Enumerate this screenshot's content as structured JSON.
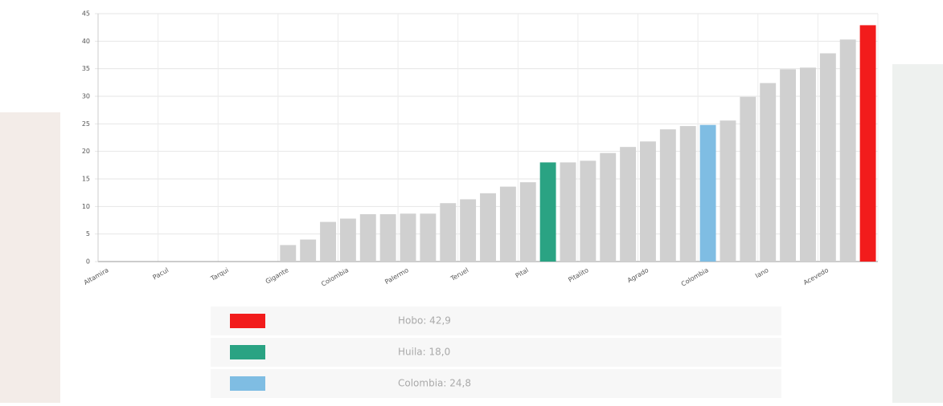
{
  "chart_data": {
    "type": "bar",
    "categories": [
      "Altamira",
      null,
      null,
      "Pacul",
      null,
      null,
      "Tarqui",
      null,
      null,
      "Gigante",
      null,
      null,
      "Colombia",
      null,
      null,
      "Palermo",
      null,
      null,
      "Teruel",
      null,
      null,
      "Pital",
      null,
      null,
      "Pitalito",
      null,
      null,
      "Agrado",
      null,
      null,
      "Colombia",
      null,
      null,
      "Iano",
      null,
      null,
      "Acevedo",
      null,
      null
    ],
    "values": [
      0,
      0,
      0,
      0,
      0,
      0,
      0,
      0,
      0,
      3.0,
      4.0,
      7.2,
      7.8,
      8.6,
      8.6,
      8.7,
      8.7,
      10.6,
      11.3,
      12.4,
      13.6,
      14.4,
      18.0,
      18.0,
      18.3,
      19.7,
      20.8,
      21.8,
      24.0,
      24.6,
      24.8,
      25.6,
      29.9,
      32.4,
      34.9,
      35.2,
      37.8,
      40.3,
      42.9
    ],
    "colors": [
      "#d0d0d0",
      "#d0d0d0",
      "#d0d0d0",
      "#d0d0d0",
      "#d0d0d0",
      "#d0d0d0",
      "#d0d0d0",
      "#d0d0d0",
      "#d0d0d0",
      "#d0d0d0",
      "#d0d0d0",
      "#d0d0d0",
      "#d0d0d0",
      "#d0d0d0",
      "#d0d0d0",
      "#d0d0d0",
      "#d0d0d0",
      "#d0d0d0",
      "#d0d0d0",
      "#d0d0d0",
      "#d0d0d0",
      "#d0d0d0",
      "#2aa383",
      "#d0d0d0",
      "#d0d0d0",
      "#d0d0d0",
      "#d0d0d0",
      "#d0d0d0",
      "#d0d0d0",
      "#d0d0d0",
      "#7fbde3",
      "#d0d0d0",
      "#d0d0d0",
      "#d0d0d0",
      "#d0d0d0",
      "#d0d0d0",
      "#d0d0d0",
      "#d0d0d0",
      "#f21c1c"
    ],
    "ylim": [
      0,
      45
    ],
    "yticks": [
      0,
      5,
      10,
      15,
      20,
      25,
      30,
      35,
      40,
      45
    ],
    "grid": true,
    "legend": [
      {
        "text": "Hobo:  42,9",
        "color": "#f21c1c"
      },
      {
        "text": "Huila:  18,0",
        "color": "#2aa383"
      },
      {
        "text": "Colombia:  24,8",
        "color": "#7fbde3"
      }
    ]
  }
}
